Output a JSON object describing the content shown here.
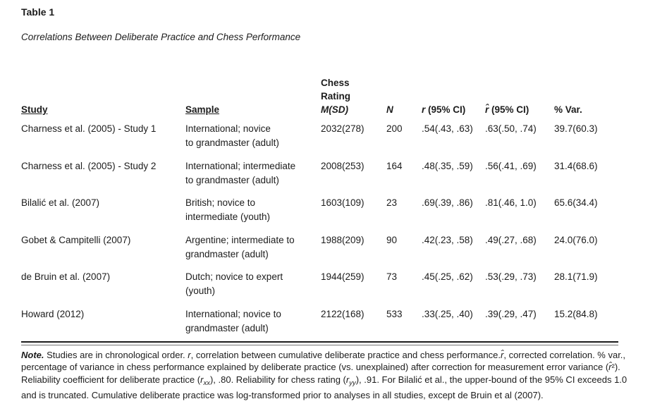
{
  "document": {
    "table_number": "Table 1",
    "caption": "Correlations Between Deliberate Practice and Chess Performance"
  },
  "table": {
    "columns": {
      "study": "Study",
      "sample": "Sample",
      "chess_rating_line1": "Chess Rating",
      "chess_rating_line2": "M(SD)",
      "n": "N",
      "r_ci": [
        {
          "t": "r",
          "s": "bi"
        },
        {
          "t": " (95% CI)",
          "s": "b"
        }
      ],
      "rhat_ci": [
        {
          "t": "r̂",
          "s": "bi"
        },
        {
          "t": " (95% CI)",
          "s": "b"
        }
      ],
      "pct_var": "% Var."
    },
    "rows": [
      {
        "study": "Charness et al. (2005) - Study 1",
        "sample": "International; novice\nto grandmaster (adult)",
        "m_sd": "2032(278)",
        "n": "200",
        "r_ci": ".54(.43, .63)",
        "rhat_ci": ".63(.50, .74)",
        "pct_var": "39.7(60.3)"
      },
      {
        "study": "Charness et al. (2005) - Study 2",
        "sample": "International; intermediate\nto grandmaster (adult)",
        "m_sd": "2008(253)",
        "n": "164",
        "r_ci": ".48(.35, .59)",
        "rhat_ci": ".56(.41, .69)",
        "pct_var": "31.4(68.6)"
      },
      {
        "study": "Bilalić et al. (2007)",
        "sample": "British; novice to\nintermediate (youth)",
        "m_sd": "1603(109)",
        "n": "23",
        "r_ci": ".69(.39, .86)",
        "rhat_ci": ".81(.46, 1.0)",
        "pct_var": "65.6(34.4)"
      },
      {
        "study": "Gobet & Campitelli (2007)",
        "sample": "Argentine; intermediate to\ngrandmaster (adult)",
        "m_sd": "1988(209)",
        "n": "90",
        "r_ci": ".42(.23, .58)",
        "rhat_ci": ".49(.27, .68)",
        "pct_var": "24.0(76.0)"
      },
      {
        "study": "de Bruin et al. (2007)",
        "sample": "Dutch; novice to expert\n(youth)",
        "m_sd": "1944(259)",
        "n": "73",
        "r_ci": ".45(.25, .62)",
        "rhat_ci": ".53(.29, .73)",
        "pct_var": "28.1(71.9)"
      },
      {
        "study": "Howard (2012)",
        "sample": "International; novice to\ngrandmaster (adult)",
        "m_sd": "2122(168)",
        "n": "533",
        "r_ci": ".33(.25, .40)",
        "rhat_ci": ".39(.29, .47)",
        "pct_var": "15.2(84.8)"
      }
    ]
  },
  "note": {
    "segments": [
      {
        "t": "Note.",
        "s": "bi"
      },
      {
        "t": " Studies are in chronological order. ",
        "s": "n"
      },
      {
        "t": "r",
        "s": "i"
      },
      {
        "t": ", correlation between cumulative deliberate practice and chess performance.",
        "s": "n"
      },
      {
        "t": "r̂",
        "s": "i"
      },
      {
        "t": ", corrected correlation. % var., percentage of variance in chess performance explained by deliberate practice (vs. unexplained) after correction for measurement error variance (",
        "s": "n"
      },
      {
        "t": "r̂",
        "s": "i"
      },
      {
        "t": "²",
        "s": "n"
      },
      {
        "t": "). Reliability coefficient for deliberate practice (",
        "s": "n"
      },
      {
        "t": "r",
        "s": "i"
      },
      {
        "t": "xx",
        "s": "isub"
      },
      {
        "t": "), .80. Reliability for chess rating (",
        "s": "n"
      },
      {
        "t": "r",
        "s": "i"
      },
      {
        "t": "yy",
        "s": "isub"
      },
      {
        "t": "), .91. For Bilalić et al., the upper-bound of the 95% CI exceeds 1.0 and is truncated. Cumulative deliberate practice was log-transformed prior to analyses in all studies, except de Bruin et al (2007).",
        "s": "n"
      }
    ]
  },
  "colors": {
    "text": "#1c1c1c",
    "background": "#ffffff",
    "rule": "#1b1b1b"
  }
}
